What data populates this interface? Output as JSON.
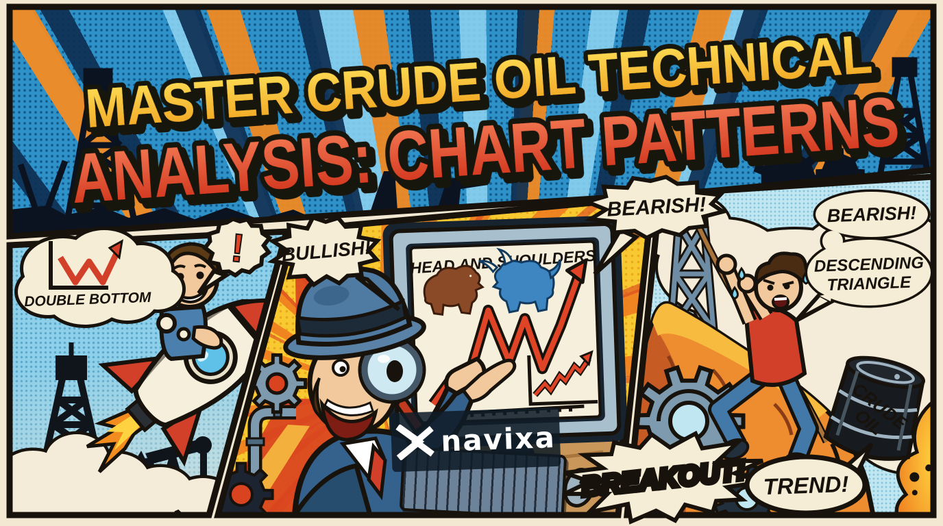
{
  "page": {
    "type": "comic promo banner",
    "topic": "crude oil technical analysis chart patterns"
  },
  "title": {
    "line1": "MASTER CRUDE OIL TECHNICAL",
    "line2": "ANALYSIS: CHART PATTERNS"
  },
  "panels": {
    "left": {
      "thought_bubble": {
        "label": "DOUBLE BOTTOM",
        "icon": "double-bottom-w-chart"
      },
      "exclaim_bubble": {
        "label": "!"
      }
    },
    "middle": {
      "bullish_bubble": {
        "label": "BULLISH!"
      },
      "bearish_bubble": {
        "label": "BEARISH!"
      },
      "monitor": {
        "title": "HEAD AND SHOULDERS",
        "icons": [
          "bear-icon",
          "bull-icon",
          "zigzag-arrow",
          "mini-trend-chart"
        ]
      },
      "breakout_burst": {
        "label": "BREAKOUT!"
      },
      "watermark": {
        "brand": "navixa"
      }
    },
    "right": {
      "bearish_bubble": {
        "label": "BEARISH!"
      },
      "descending_bubble": {
        "line1": "DESCENDING",
        "line2": "TRIANGLE"
      },
      "trend_bubble": {
        "label": "TREND!"
      },
      "oil_barrel": {
        "line1": "CRUDE",
        "line2": "OIL"
      }
    }
  },
  "colors": {
    "paper": "#f3e9d2",
    "ink": "#17120c",
    "title_sky": "#2e92c8",
    "panel_sky": "#8ecfe9",
    "burst_yellow": "#f8c930",
    "accent_orange": "#ee7d1f",
    "accent_red": "#d2402a",
    "title_yellow": "#ffdf4f",
    "title_red": "#e2461f",
    "steel_blue": "#7e9aae",
    "screen_cream": "#f6efdb",
    "bear_brown": "#8a4a28",
    "bull_blue": "#3e86c2",
    "mountain_orange": "#ee8d2f",
    "skin": "#f2c99c"
  }
}
